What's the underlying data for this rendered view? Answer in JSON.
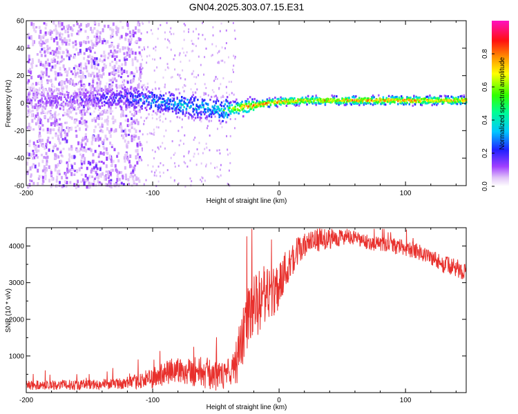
{
  "title": "GN04.2025.303.07.15.E31",
  "chart_data": [
    {
      "type": "heatmap",
      "name": "spectrogram",
      "xlabel": "Height of straight line (km)",
      "ylabel": "Frequency (Hz)",
      "xlim": [
        -200,
        148
      ],
      "ylim": [
        -60,
        60
      ],
      "xticks": [
        -200,
        -100,
        0,
        100
      ],
      "xtick_labels": [
        "-200",
        "-100",
        "0",
        "100"
      ],
      "yticks": [
        60,
        40,
        20,
        0,
        -20,
        -40,
        -60
      ],
      "ytick_labels": [
        "60",
        "40",
        "20",
        "0",
        "-20",
        "-40",
        "-60"
      ],
      "colorbar": {
        "label": "Normalized spectral amplitude",
        "range": [
          0,
          1
        ],
        "ticks": [
          0.0,
          0.2,
          0.4,
          0.6,
          0.8
        ],
        "tick_labels": [
          "0.0",
          "0.2",
          "0.4",
          "0.6",
          "0.8"
        ]
      },
      "ridge": {
        "x": [
          -200,
          -150,
          -120,
          -100,
          -80,
          -60,
          -45,
          -30,
          -10,
          0,
          20,
          50,
          100,
          148
        ],
        "center_freq": [
          2,
          3,
          4,
          2,
          -1,
          -3,
          -5,
          -3,
          0,
          1,
          2,
          2,
          2,
          2
        ],
        "amplitude": [
          0.15,
          0.2,
          0.3,
          0.4,
          0.45,
          0.45,
          0.55,
          0.85,
          0.9,
          0.85,
          0.8,
          0.85,
          0.9,
          0.8
        ]
      }
    },
    {
      "type": "line",
      "name": "snr",
      "xlabel": "Height of straight line (km)",
      "ylabel": "SNR (10 * v/v)",
      "color": "#e8302c",
      "xlim": [
        -200,
        148
      ],
      "ylim": [
        0,
        4500
      ],
      "xticks": [
        -200,
        -100,
        0,
        100
      ],
      "xtick_labels": [
        "-200",
        "-100",
        "0",
        "100"
      ],
      "yticks": [
        1000,
        2000,
        3000,
        4000
      ],
      "ytick_labels": [
        "1000",
        "2000",
        "3000",
        "4000"
      ],
      "envelope": {
        "x": [
          -200,
          -150,
          -120,
          -100,
          -90,
          -80,
          -70,
          -60,
          -50,
          -40,
          -35,
          -30,
          -25,
          -20,
          -15,
          -10,
          -5,
          0,
          5,
          10,
          20,
          30,
          40,
          50,
          60,
          70,
          80,
          90,
          100,
          110,
          120,
          130,
          140,
          148
        ],
        "y": [
          200,
          220,
          250,
          400,
          520,
          620,
          600,
          560,
          450,
          450,
          700,
          1300,
          2000,
          2300,
          2500,
          2600,
          2700,
          3000,
          3300,
          3700,
          4000,
          4150,
          4200,
          4250,
          4200,
          4100,
          4050,
          4000,
          3950,
          3850,
          3700,
          3500,
          3400,
          3300
        ]
      },
      "noise": {
        "x": [
          -200,
          -120,
          -100,
          -60,
          -40,
          -30,
          -20,
          0,
          20,
          60,
          100,
          148
        ],
        "y": [
          130,
          150,
          300,
          450,
          350,
          800,
          900,
          700,
          350,
          200,
          220,
          250
        ]
      }
    }
  ]
}
